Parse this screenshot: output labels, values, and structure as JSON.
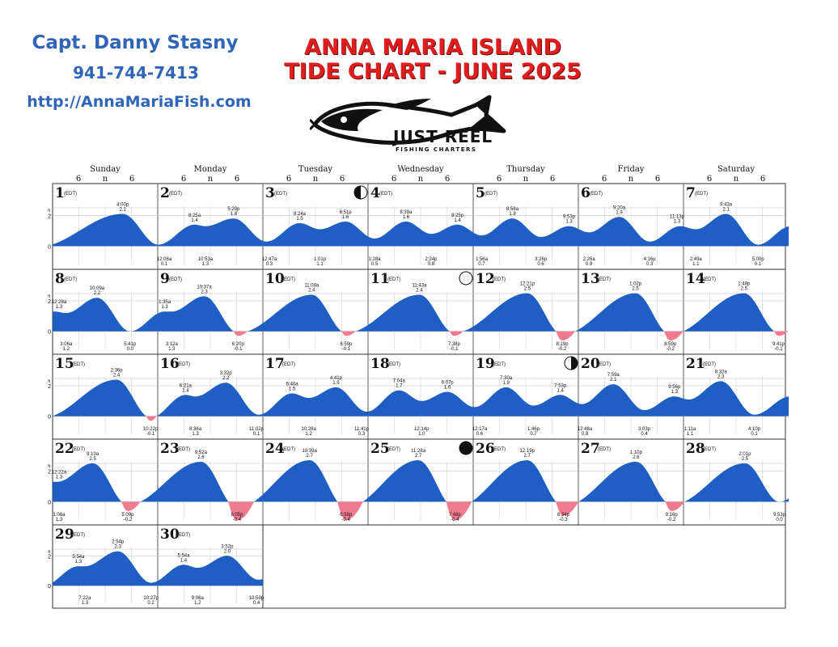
{
  "header": {
    "captain": "Capt. Danny Stasny",
    "phone": "941-744-7413",
    "website": "http://AnnaMariaFish.com",
    "title_line1": "ANNA MARIA ISLAND",
    "title_line2": "TIDE CHART - JUNE 2025",
    "logo_text": "JUST REEL",
    "logo_subtext": "FISHING CHARTERS"
  },
  "colors": {
    "tide_fill": "#1f5fc4",
    "negative_fill": "#f07a8e",
    "title": "#e01c1c",
    "contact": "#2f64b8"
  },
  "weekdays": [
    "Sunday",
    "Monday",
    "Tuesday",
    "Wednesday",
    "Thursday",
    "Friday",
    "Saturday"
  ],
  "hour_ticks": [
    "6",
    "n",
    "6"
  ],
  "chart_data": {
    "type": "area",
    "title": "TIDE CHART - JUNE 2025",
    "unit": "ft",
    "ylabel": "ft",
    "ylim": [
      -0.5,
      3
    ],
    "y_ticks": [
      "2",
      "0"
    ],
    "timezone_label": "(EDT)",
    "moon_phases": [
      {
        "day": 3,
        "phase": "first-quarter"
      },
      {
        "day": 11,
        "phase": "full"
      },
      {
        "day": 19,
        "phase": "last-quarter"
      },
      {
        "day": 25,
        "phase": "new"
      }
    ],
    "days": [
      {
        "day": 1,
        "tides": [
          [
            "4:00p",
            2.1,
            "H"
          ]
        ]
      },
      {
        "day": 2,
        "tides": [
          [
            "12:06a",
            0.1,
            "L"
          ],
          [
            "8:25a",
            1.4,
            "H"
          ],
          [
            "10:53a",
            1.3,
            "L"
          ],
          [
            "5:20p",
            1.8,
            "H"
          ]
        ]
      },
      {
        "day": 3,
        "tides": [
          [
            "12:47a",
            0.3,
            "L"
          ],
          [
            "8:24a",
            1.5,
            "H"
          ],
          [
            "1:01p",
            1.1,
            "L"
          ],
          [
            "6:51p",
            1.6,
            "H"
          ]
        ]
      },
      {
        "day": 4,
        "tides": [
          [
            "1:28a",
            0.5,
            "L"
          ],
          [
            "8:39a",
            1.6,
            "H"
          ],
          [
            "2:24p",
            0.8,
            "L"
          ],
          [
            "8:25p",
            1.4,
            "H"
          ]
        ]
      },
      {
        "day": 5,
        "tides": [
          [
            "1:56a",
            0.7,
            "L"
          ],
          [
            "8:58a",
            1.8,
            "H"
          ],
          [
            "3:26p",
            0.6,
            "L"
          ],
          [
            "9:53p",
            1.3,
            "H"
          ]
        ]
      },
      {
        "day": 6,
        "tides": [
          [
            "2:26a",
            0.9,
            "L"
          ],
          [
            "9:20a",
            1.9,
            "H"
          ],
          [
            "4:16p",
            0.3,
            "L"
          ],
          [
            "11:13p",
            1.3,
            "H"
          ]
        ]
      },
      {
        "day": 7,
        "tides": [
          [
            "2:49a",
            1.1,
            "L"
          ],
          [
            "9:43a",
            2.1,
            "H"
          ],
          [
            "5:00p",
            0.1,
            "L"
          ]
        ]
      },
      {
        "day": 8,
        "tides": [
          [
            "12:28a",
            1.3,
            "H"
          ],
          [
            "3:06a",
            1.2,
            "L"
          ],
          [
            "10:09a",
            2.2,
            "H"
          ],
          [
            "5:41p",
            0.0,
            "L"
          ]
        ]
      },
      {
        "day": 9,
        "tides": [
          [
            "1:35a",
            1.3,
            "H"
          ],
          [
            "3:12a",
            1.3,
            "L"
          ],
          [
            "10:37a",
            2.3,
            "H"
          ],
          [
            "6:20p",
            -0.1,
            "L"
          ]
        ]
      },
      {
        "day": 10,
        "tides": [
          [
            "11:08a",
            2.4,
            "H"
          ],
          [
            "6:59p",
            -0.1,
            "L"
          ]
        ]
      },
      {
        "day": 11,
        "tides": [
          [
            "11:43a",
            2.4,
            "H"
          ],
          [
            "7:38p",
            -0.1,
            "L"
          ]
        ]
      },
      {
        "day": 12,
        "tides": [
          [
            "12:21p",
            2.5,
            "H"
          ],
          [
            "8:19p",
            -0.2,
            "L"
          ]
        ]
      },
      {
        "day": 13,
        "tides": [
          [
            "1:02p",
            2.5,
            "H"
          ],
          [
            "8:59p",
            -0.2,
            "L"
          ]
        ]
      },
      {
        "day": 14,
        "tides": [
          [
            "1:48p",
            2.5,
            "H"
          ],
          [
            "9:41p",
            -0.1,
            "L"
          ]
        ]
      },
      {
        "day": 15,
        "tides": [
          [
            "2:36p",
            2.4,
            "H"
          ],
          [
            "10:22p",
            -0.1,
            "L"
          ]
        ]
      },
      {
        "day": 16,
        "tides": [
          [
            "6:21a",
            1.4,
            "H"
          ],
          [
            "8:36a",
            1.3,
            "L"
          ],
          [
            "3:32p",
            2.2,
            "H"
          ],
          [
            "11:02p",
            0.1,
            "L"
          ]
        ]
      },
      {
        "day": 17,
        "tides": [
          [
            "6:40a",
            1.5,
            "H"
          ],
          [
            "10:28a",
            1.2,
            "L"
          ],
          [
            "4:41p",
            1.9,
            "H"
          ],
          [
            "11:41p",
            0.3,
            "L"
          ]
        ]
      },
      {
        "day": 18,
        "tides": [
          [
            "7:04a",
            1.7,
            "H"
          ],
          [
            "12:14p",
            1.0,
            "L"
          ],
          [
            "6:07p",
            1.6,
            "H"
          ]
        ]
      },
      {
        "day": 19,
        "tides": [
          [
            "12:17a",
            0.6,
            "L"
          ],
          [
            "7:30a",
            1.9,
            "H"
          ],
          [
            "1:46p",
            0.7,
            "L"
          ],
          [
            "7:53p",
            1.4,
            "H"
          ]
        ]
      },
      {
        "day": 20,
        "tides": [
          [
            "12:48a",
            0.8,
            "L"
          ],
          [
            "7:59a",
            2.1,
            "H"
          ],
          [
            "3:03p",
            0.4,
            "L"
          ],
          [
            "9:56p",
            1.3,
            "H"
          ]
        ]
      },
      {
        "day": 21,
        "tides": [
          [
            "1:11a",
            1.1,
            "L"
          ],
          [
            "8:32a",
            2.3,
            "H"
          ],
          [
            "4:10p",
            0.1,
            "L"
          ]
        ]
      },
      {
        "day": 22,
        "tides": [
          [
            "12:22a",
            1.3,
            "H"
          ],
          [
            "1:06a",
            1.3,
            "L"
          ],
          [
            "9:10a",
            2.5,
            "H"
          ],
          [
            "5:09p",
            -0.2,
            "L"
          ]
        ]
      },
      {
        "day": 23,
        "tides": [
          [
            "9:52a",
            2.6,
            "H"
          ],
          [
            "6:05p",
            -0.4,
            "L"
          ]
        ]
      },
      {
        "day": 24,
        "tides": [
          [
            "10:39a",
            2.7,
            "H"
          ],
          [
            "6:58p",
            -0.4,
            "L"
          ]
        ]
      },
      {
        "day": 25,
        "tides": [
          [
            "11:28a",
            2.7,
            "H"
          ],
          [
            "7:48p",
            -0.4,
            "L"
          ]
        ]
      },
      {
        "day": 26,
        "tides": [
          [
            "12:19p",
            2.7,
            "H"
          ],
          [
            "8:34p",
            -0.3,
            "L"
          ]
        ]
      },
      {
        "day": 27,
        "tides": [
          [
            "1:10p",
            2.6,
            "H"
          ],
          [
            "9:16p",
            -0.2,
            "L"
          ]
        ]
      },
      {
        "day": 28,
        "tides": [
          [
            "2:01p",
            2.5,
            "H"
          ],
          [
            "9:53p",
            0.0,
            "L"
          ]
        ]
      },
      {
        "day": 29,
        "tides": [
          [
            "5:54a",
            1.3,
            "H"
          ],
          [
            "7:22a",
            1.3,
            "L"
          ],
          [
            "2:54p",
            2.3,
            "H"
          ],
          [
            "10:27p",
            0.2,
            "L"
          ]
        ]
      },
      {
        "day": 30,
        "tides": [
          [
            "5:54a",
            1.4,
            "H"
          ],
          [
            "9:06a",
            1.2,
            "L"
          ],
          [
            "3:52p",
            2.0,
            "H"
          ],
          [
            "10:59p",
            0.4,
            "L"
          ]
        ]
      }
    ]
  }
}
